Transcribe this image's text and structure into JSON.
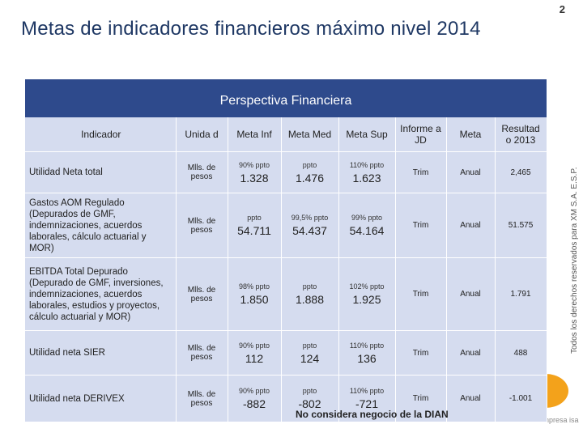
{
  "page": {
    "title": "Metas de indicadores financieros máximo nivel 2014",
    "number": "2",
    "side_note": "Todos los derechos reservados para XM S.A. E.S.P.",
    "logo_subtext": "una empresa isa"
  },
  "table": {
    "caption": "Perspectiva Financiera",
    "headers": [
      "Indicador",
      "Unida d",
      "Meta Inf",
      "Meta Med",
      "Meta Sup",
      "Informe a JD",
      "Meta",
      "Resultad o 2013"
    ],
    "rows": [
      {
        "indicador": "Utilidad Neta total",
        "unidad": "Mlls. de pesos",
        "inf_note": "90% ppto",
        "inf_val": "1.328",
        "med_note": "ppto",
        "med_val": "1.476",
        "sup_note": "110% ppto",
        "sup_val": "1.623",
        "informe": "Trim",
        "meta": "Anual",
        "resultado": "2,465"
      },
      {
        "indicador": "Gastos AOM Regulado (Depurados de GMF, indemnizaciones, acuerdos laborales, cálculo actuarial y MOR)",
        "unidad": "Mlls. de pesos",
        "inf_note": "ppto",
        "inf_val": "54.711",
        "med_note": "99,5% ppto",
        "med_val": "54.437",
        "sup_note": "99% ppto",
        "sup_val": "54.164",
        "informe": "Trim",
        "meta": "Anual",
        "resultado": "51.575"
      },
      {
        "indicador": "EBITDA Total Depurado (Depurado de GMF, inversiones, indemnizaciones, acuerdos laborales, estudios y proyectos, cálculo actuarial y MOR)",
        "unidad": "Mlls. de pesos",
        "inf_note": "98% ppto",
        "inf_val": "1.850",
        "med_note": "ppto",
        "med_val": "1.888",
        "sup_note": "102% ppto",
        "sup_val": "1.925",
        "informe": "Trim",
        "meta": "Anual",
        "resultado": "1.791"
      },
      {
        "indicador": "Utilidad neta SIER",
        "unidad": "Mlls. de pesos",
        "inf_note": "90% ppto",
        "inf_val": "112",
        "med_note": "ppto",
        "med_val": "124",
        "sup_note": "110% ppto",
        "sup_val": "136",
        "informe": "Trim",
        "meta": "Anual",
        "resultado": "488"
      },
      {
        "indicador": "Utilidad neta DERIVEX",
        "unidad": "Mlls. de pesos",
        "inf_note": "90% ppto",
        "inf_val": "-882",
        "med_note": "ppto",
        "med_val": "-802",
        "sup_note": "110% ppto",
        "sup_val": "-721",
        "informe": "Trim",
        "meta": "Anual",
        "resultado": "-1.001"
      }
    ],
    "footnote": "No considera negocio de la DIAN"
  }
}
